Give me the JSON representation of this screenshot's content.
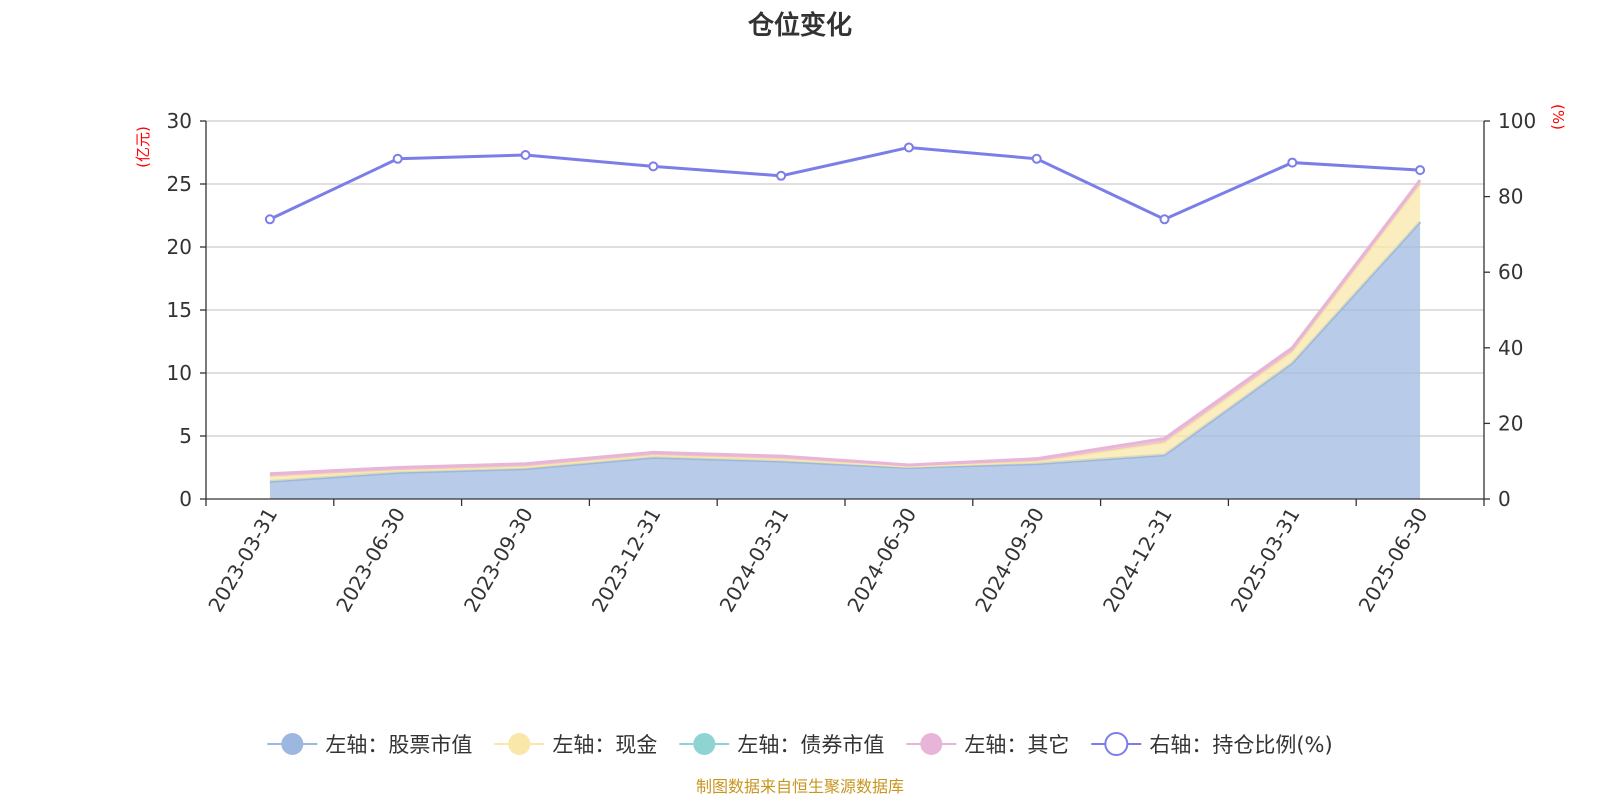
{
  "chart_data": {
    "type": "area",
    "title": "仓位变化",
    "left_axis_unit": "(亿元)",
    "right_axis_unit": "(%)",
    "categories": [
      "2023-03-31",
      "2023-06-30",
      "2023-09-30",
      "2023-12-31",
      "2024-03-31",
      "2024-06-30",
      "2024-09-30",
      "2024-12-31",
      "2025-03-31",
      "2025-06-30"
    ],
    "ylim_left": [
      0,
      30
    ],
    "yticks_left": [
      0,
      5,
      10,
      15,
      20,
      25,
      30
    ],
    "ylim_right": [
      0,
      100
    ],
    "yticks_right": [
      0,
      20,
      40,
      60,
      80,
      100
    ],
    "grid": true,
    "stacked": true,
    "legend_position": "bottom",
    "series": [
      {
        "name": "左轴：股票市值",
        "axis": "left",
        "color": "#9cb8e0",
        "values": [
          1.4,
          2.1,
          2.4,
          3.3,
          3.0,
          2.5,
          2.8,
          3.5,
          10.8,
          22.0
        ]
      },
      {
        "name": "左轴：现金",
        "axis": "left",
        "color": "#f8e7a8",
        "values": [
          0.4,
          0.2,
          0.2,
          0.2,
          0.2,
          0.1,
          0.2,
          1.0,
          0.9,
          3.0
        ]
      },
      {
        "name": "左轴：债券市值",
        "axis": "left",
        "color": "#8fd3d3",
        "values": [
          0,
          0,
          0,
          0,
          0,
          0,
          0,
          0,
          0,
          0
        ]
      },
      {
        "name": "左轴：其它",
        "axis": "left",
        "color": "#e8b4d8",
        "values": [
          0.2,
          0.2,
          0.2,
          0.2,
          0.2,
          0.1,
          0.2,
          0.3,
          0.3,
          0.3
        ]
      },
      {
        "name": "右轴：持仓比例(%)",
        "axis": "right",
        "color": "#7b7ee8",
        "values": [
          74.0,
          90.0,
          91.0,
          88.0,
          85.5,
          93.0,
          90.0,
          74.0,
          89.0,
          87.0
        ]
      }
    ],
    "source_note": "制图数据来自恒生聚源数据库"
  }
}
